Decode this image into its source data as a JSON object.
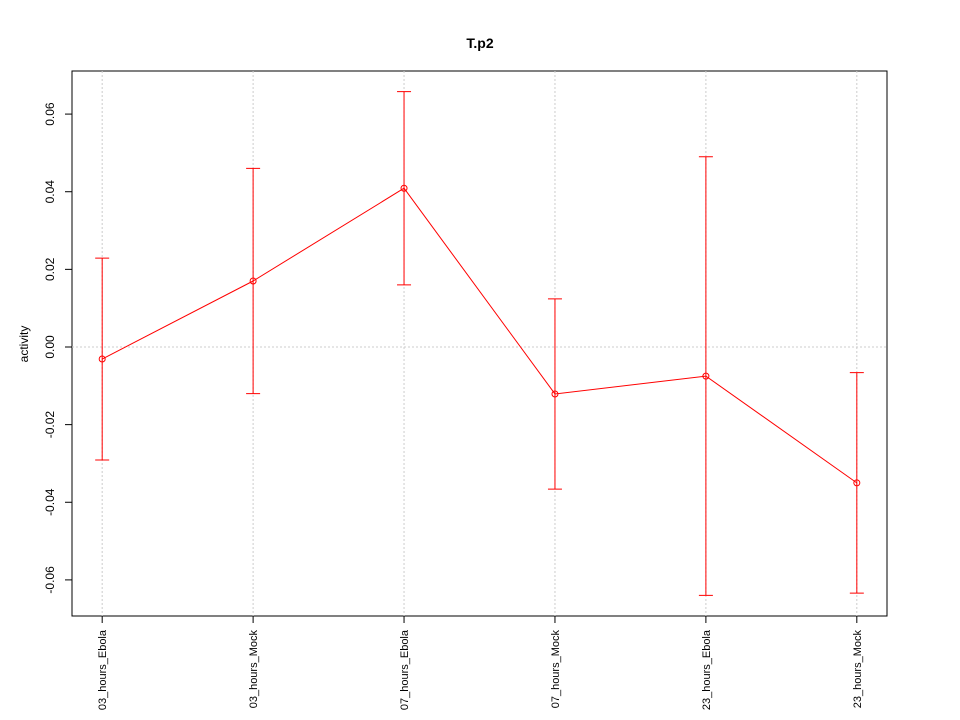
{
  "chart_data": {
    "type": "line",
    "title": "T.p2",
    "y_label": "activity",
    "categories": [
      "03_hours_Ebola",
      "03_hours_Mock",
      "07_hours_Ebola",
      "07_hours_Mock",
      "23_hours_Ebola",
      "23_hours_Mock"
    ],
    "series": [
      {
        "name": "T.p2",
        "color": "#ff0000",
        "values": [
          -0.0031,
          0.017,
          0.0409,
          -0.0121,
          -0.0075,
          -0.035
        ],
        "errors": [
          0.026,
          0.029,
          0.0249,
          0.0245,
          0.0565,
          0.0284
        ]
      }
    ],
    "ylim": [
      -0.0693,
      0.0711
    ],
    "yticks": [
      {
        "value": -0.06,
        "label": "-0.06"
      },
      {
        "value": -0.04,
        "label": "-0.04"
      },
      {
        "value": -0.02,
        "label": "-0.02"
      },
      {
        "value": 0,
        "label": "0.00"
      },
      {
        "value": 0.02,
        "label": "0.02"
      },
      {
        "value": 0.04,
        "label": "0.04"
      },
      {
        "value": 0.06,
        "label": "0.06"
      }
    ],
    "grid": true,
    "reference_line": 0
  }
}
